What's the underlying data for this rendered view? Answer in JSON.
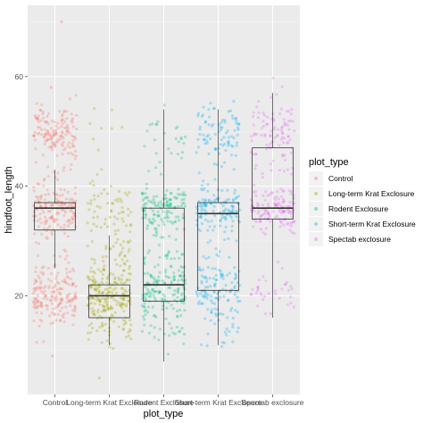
{
  "chart_data": {
    "type": "boxplot_jitter",
    "xlabel": "plot_type",
    "ylabel": "hindfoot_length",
    "ylim": [
      2,
      73
    ],
    "yticks": [
      20,
      40,
      60
    ],
    "categories": [
      "Control",
      "Long-term Krat Exclosure",
      "Rodent Exclosure",
      "Short-term Krat Exclosure",
      "Spectab exclosure"
    ],
    "colors": [
      "#F8766D",
      "#A3A500",
      "#00BF7D",
      "#00B0F6",
      "#E76BF3"
    ],
    "legend": {
      "title": "plot_type",
      "position": "right",
      "entries": [
        "Control",
        "Long-term Krat Exclosure",
        "Rodent Exclosure",
        "Short-term Krat Exclosure",
        "Spectab exclosure"
      ]
    },
    "boxes": [
      {
        "category": "Control",
        "whisker_low": 25,
        "q1": 32,
        "median": 36,
        "q3": 37,
        "whisker_high": 43
      },
      {
        "category": "Long-term Krat Exclosure",
        "whisker_low": 11,
        "q1": 16,
        "median": 20,
        "q3": 22,
        "whisker_high": 31
      },
      {
        "category": "Rodent Exclosure",
        "whisker_low": 8,
        "q1": 19,
        "median": 22,
        "q3": 36,
        "whisker_high": 54
      },
      {
        "category": "Short-term Krat Exclosure",
        "whisker_low": 11,
        "q1": 21,
        "median": 35,
        "q3": 37,
        "whisker_high": 54
      },
      {
        "category": "Spectab exclosure",
        "whisker_low": 16,
        "q1": 34,
        "median": 36,
        "q3": 47,
        "whisker_high": 57
      }
    ],
    "point_clusters": [
      {
        "category": 0,
        "center": 50,
        "spread": 2.5,
        "count": 140
      },
      {
        "category": 0,
        "center": 36,
        "spread": 2.2,
        "count": 150
      },
      {
        "category": 0,
        "center": 20,
        "spread": 2.5,
        "count": 170
      },
      {
        "category": 0,
        "center": 27,
        "spread": 3.0,
        "count": 20
      },
      {
        "category": 0,
        "center": 44,
        "spread": 3.0,
        "count": 15
      },
      {
        "category": 1,
        "center": 20,
        "spread": 3.0,
        "count": 200
      },
      {
        "category": 1,
        "center": 35,
        "spread": 3.0,
        "count": 60
      },
      {
        "category": 1,
        "center": 27,
        "spread": 3.0,
        "count": 40
      },
      {
        "category": 1,
        "center": 14,
        "spread": 2.0,
        "count": 30
      },
      {
        "category": 1,
        "center": 50,
        "spread": 2.5,
        "count": 8
      },
      {
        "category": 2,
        "center": 36,
        "spread": 2.0,
        "count": 120
      },
      {
        "category": 2,
        "center": 21,
        "spread": 2.5,
        "count": 130
      },
      {
        "category": 2,
        "center": 50,
        "spread": 2.5,
        "count": 20
      },
      {
        "category": 2,
        "center": 28,
        "spread": 4.0,
        "count": 40
      },
      {
        "category": 2,
        "center": 14,
        "spread": 3.0,
        "count": 30
      },
      {
        "category": 2,
        "center": 44,
        "spread": 4.0,
        "count": 10
      },
      {
        "category": 3,
        "center": 50,
        "spread": 2.5,
        "count": 80
      },
      {
        "category": 3,
        "center": 36,
        "spread": 2.0,
        "count": 110
      },
      {
        "category": 3,
        "center": 21,
        "spread": 2.5,
        "count": 110
      },
      {
        "category": 3,
        "center": 28,
        "spread": 4.0,
        "count": 20
      },
      {
        "category": 3,
        "center": 14,
        "spread": 2.5,
        "count": 20
      },
      {
        "category": 3,
        "center": 44,
        "spread": 3.0,
        "count": 10
      },
      {
        "category": 4,
        "center": 50,
        "spread": 3.0,
        "count": 90
      },
      {
        "category": 4,
        "center": 36,
        "spread": 1.8,
        "count": 130
      },
      {
        "category": 4,
        "center": 21,
        "spread": 2.0,
        "count": 35
      },
      {
        "category": 4,
        "center": 43,
        "spread": 3.0,
        "count": 15
      }
    ],
    "outlier_points": [
      {
        "category": 0,
        "y": 70
      },
      {
        "category": 0,
        "y": 58
      },
      {
        "category": 0,
        "y": 9
      },
      {
        "category": 1,
        "y": 5
      }
    ]
  }
}
